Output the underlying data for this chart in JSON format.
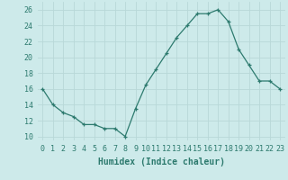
{
  "x": [
    0,
    1,
    2,
    3,
    4,
    5,
    6,
    7,
    8,
    9,
    10,
    11,
    12,
    13,
    14,
    15,
    16,
    17,
    18,
    19,
    20,
    21,
    22,
    23
  ],
  "y": [
    16,
    14,
    13,
    12.5,
    11.5,
    11.5,
    11,
    11,
    10,
    13.5,
    16.5,
    18.5,
    20.5,
    22.5,
    24,
    25.5,
    25.5,
    26,
    24.5,
    21,
    19,
    17,
    17,
    16
  ],
  "line_color": "#2d7a6e",
  "marker": "+",
  "marker_size": 3,
  "title": "",
  "xlabel": "Humidex (Indice chaleur)",
  "ylabel": "",
  "bg_color": "#cdeaea",
  "grid_color": "#b8d8d8",
  "xlim": [
    -0.5,
    23.5
  ],
  "ylim": [
    9.5,
    27
  ],
  "yticks": [
    10,
    12,
    14,
    16,
    18,
    20,
    22,
    24,
    26
  ],
  "xticks": [
    0,
    1,
    2,
    3,
    4,
    5,
    6,
    7,
    8,
    9,
    10,
    11,
    12,
    13,
    14,
    15,
    16,
    17,
    18,
    19,
    20,
    21,
    22,
    23
  ],
  "xlabel_fontsize": 7,
  "tick_fontsize": 6
}
